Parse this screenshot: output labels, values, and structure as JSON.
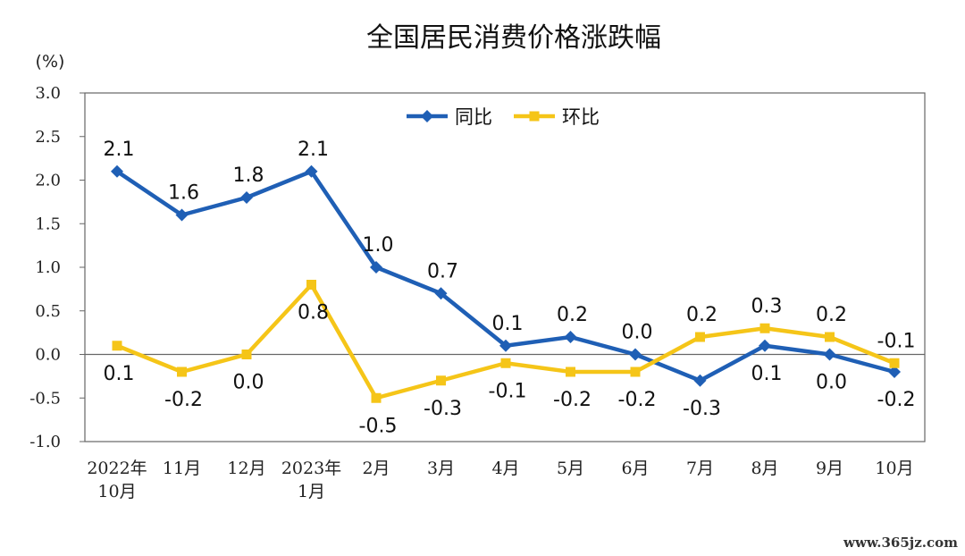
{
  "chart_data": {
    "type": "line",
    "title": "全国居民消费价格涨跌幅",
    "ylabel": "(%)",
    "ylim": [
      -1.0,
      3.0
    ],
    "yticks": [
      "3.0",
      "2.5",
      "2.0",
      "1.5",
      "1.0",
      "0.5",
      "0.0",
      "-0.5",
      "-1.0"
    ],
    "categories": [
      [
        "2022年",
        "10月"
      ],
      [
        "11月"
      ],
      [
        "12月"
      ],
      [
        "2023年",
        "1月"
      ],
      [
        "2月"
      ],
      [
        "3月"
      ],
      [
        "4月"
      ],
      [
        "5月"
      ],
      [
        "6月"
      ],
      [
        "7月"
      ],
      [
        "8月"
      ],
      [
        "9月"
      ],
      [
        "10月"
      ]
    ],
    "series": [
      {
        "name": "同比",
        "color": "#1f5fb5",
        "marker": "diamond",
        "label_side": "above-first",
        "values": [
          2.1,
          1.6,
          1.8,
          2.1,
          1.0,
          0.7,
          0.1,
          0.2,
          0.0,
          -0.3,
          0.1,
          0.0,
          -0.2
        ],
        "labels": [
          "2.1",
          "1.6",
          "1.8",
          "2.1",
          "1.0",
          "0.7",
          "0.1",
          "0.2",
          "0.0",
          "-0.3",
          "0.1",
          "0.0",
          "-0.2"
        ]
      },
      {
        "name": "环比",
        "color": "#f5c518",
        "marker": "square",
        "values": [
          0.1,
          -0.2,
          0.0,
          0.8,
          -0.5,
          -0.3,
          -0.1,
          -0.2,
          -0.2,
          0.2,
          0.3,
          0.2,
          -0.1
        ],
        "labels": [
          "0.1",
          "-0.2",
          "0.0",
          "0.8",
          "-0.5",
          "-0.3",
          "-0.1",
          "-0.2",
          "-0.2",
          "0.2",
          "0.3",
          "0.2",
          "-0.1"
        ]
      }
    ],
    "legend_position": "top-center",
    "grid": false
  },
  "watermark": "www.365jz.com"
}
